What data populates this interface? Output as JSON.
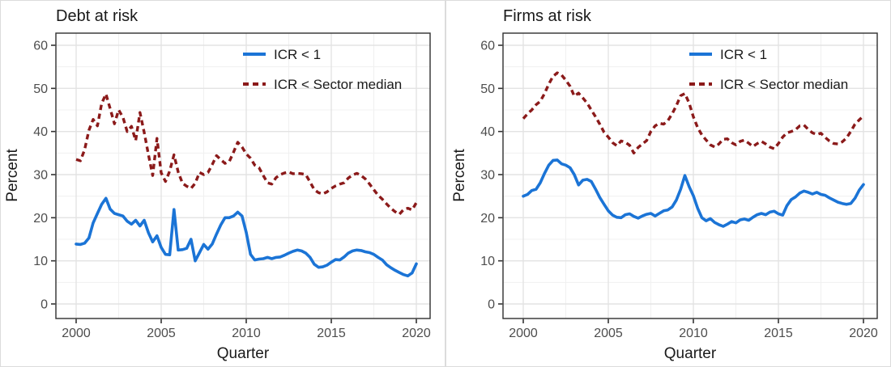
{
  "page": {
    "background": "#ffffff"
  },
  "colors": {
    "series_blue": "#1B74D6",
    "series_red": "#8B1A1A",
    "text": "#1A1A1A",
    "tick_label": "#4D4D4D",
    "grid_major": "#E3E3E3",
    "grid_minor": "#F0F0F0",
    "panel_border": "#2F2F2F",
    "tick_mark": "#333333"
  },
  "chart_data": [
    {
      "type": "line",
      "title": "Debt at risk",
      "xlabel": "Quarter",
      "ylabel": "Percent",
      "x_ticks": [
        2000,
        2005,
        2010,
        2015,
        2020
      ],
      "x_minor_ticks": [
        2002.5,
        2007.5,
        2012.5,
        2017.5
      ],
      "y_ticks": [
        0,
        10,
        20,
        30,
        40,
        50,
        60
      ],
      "y_minor_ticks": [
        5,
        15,
        25,
        35,
        45,
        55
      ],
      "ylim": [
        -3.5,
        62.8
      ],
      "x": {
        "start": 2000,
        "step": 0.25,
        "end": 2020,
        "unit": "quarter"
      },
      "legend_position": "top-right-inside",
      "grid": true,
      "series": [
        {
          "name": "ICR < 1",
          "style": "solid",
          "color_key": "series_blue",
          "values": [
            13.9,
            13.8,
            14.1,
            15.3,
            18.8,
            21.0,
            23.1,
            24.5,
            22.0,
            21.0,
            20.7,
            20.4,
            19.2,
            18.5,
            19.4,
            18.1,
            19.4,
            16.5,
            14.4,
            15.8,
            13.1,
            11.5,
            11.4,
            21.9,
            12.5,
            12.6,
            12.9,
            15.0,
            10.0,
            11.9,
            13.8,
            12.7,
            13.9,
            16.2,
            18.3,
            20.0,
            20.0,
            20.4,
            21.3,
            20.4,
            16.6,
            11.5,
            10.2,
            10.4,
            10.5,
            10.8,
            10.5,
            10.8,
            10.9,
            11.3,
            11.8,
            12.2,
            12.5,
            12.3,
            11.8,
            10.8,
            9.2,
            8.5,
            8.6,
            9.0,
            9.7,
            10.3,
            10.2,
            10.9,
            11.8,
            12.3,
            12.5,
            12.4,
            12.1,
            11.9,
            11.5,
            10.8,
            10.2,
            9.1,
            8.4,
            7.8,
            7.3,
            6.8,
            6.5,
            7.2,
            9.3
          ]
        },
        {
          "name": "ICR < Sector median",
          "style": "dashed",
          "color_key": "series_red",
          "values": [
            33.5,
            33.2,
            35.8,
            40.3,
            42.8,
            41.3,
            46.5,
            48.7,
            45.3,
            41.8,
            45.0,
            43.3,
            40.0,
            41.2,
            37.9,
            44.4,
            39.8,
            34.6,
            29.8,
            38.4,
            30.4,
            28.4,
            30.8,
            34.6,
            30.6,
            28.0,
            27.3,
            26.8,
            28.0,
            30.5,
            30.0,
            30.5,
            32.3,
            34.4,
            33.5,
            32.6,
            33.0,
            35.2,
            37.5,
            36.4,
            34.8,
            33.8,
            32.2,
            31.6,
            29.8,
            28.1,
            27.8,
            29.3,
            30.0,
            30.4,
            30.6,
            30.2,
            30.3,
            30.2,
            30.0,
            28.3,
            26.5,
            25.8,
            25.5,
            26.0,
            26.8,
            27.4,
            27.8,
            28.1,
            29.2,
            29.9,
            30.3,
            29.8,
            29.0,
            27.8,
            26.5,
            25.2,
            24.3,
            23.2,
            22.2,
            21.4,
            20.8,
            21.9,
            22.2,
            21.8,
            23.5
          ]
        }
      ]
    },
    {
      "type": "line",
      "title": "Firms at risk",
      "xlabel": "Quarter",
      "ylabel": "Percent",
      "x_ticks": [
        2000,
        2005,
        2010,
        2015,
        2020
      ],
      "x_minor_ticks": [
        2002.5,
        2007.5,
        2012.5,
        2017.5
      ],
      "y_ticks": [
        0,
        10,
        20,
        30,
        40,
        50,
        60
      ],
      "y_minor_ticks": [
        5,
        15,
        25,
        35,
        45,
        55
      ],
      "ylim": [
        -3.5,
        62.8
      ],
      "x": {
        "start": 2000,
        "step": 0.25,
        "end": 2020,
        "unit": "quarter"
      },
      "legend_position": "top-right-inside",
      "grid": true,
      "series": [
        {
          "name": "ICR < 1",
          "style": "solid",
          "color_key": "series_blue",
          "values": [
            25.0,
            25.4,
            26.3,
            26.6,
            28.1,
            30.3,
            32.2,
            33.3,
            33.4,
            32.5,
            32.2,
            31.6,
            30.0,
            27.6,
            28.7,
            28.9,
            28.4,
            26.6,
            24.7,
            23.1,
            21.6,
            20.6,
            20.1,
            20.0,
            20.7,
            20.9,
            20.3,
            19.9,
            20.4,
            20.8,
            21.0,
            20.4,
            21.0,
            21.6,
            21.8,
            22.5,
            24.1,
            26.6,
            29.8,
            27.2,
            25.1,
            22.2,
            20.0,
            19.3,
            19.8,
            18.9,
            18.4,
            18.0,
            18.5,
            19.1,
            18.8,
            19.5,
            19.7,
            19.4,
            20.1,
            20.7,
            21.0,
            20.7,
            21.3,
            21.5,
            20.9,
            20.6,
            22.8,
            24.2,
            24.8,
            25.7,
            26.2,
            25.9,
            25.5,
            25.9,
            25.4,
            25.2,
            24.6,
            24.1,
            23.6,
            23.3,
            23.1,
            23.3,
            24.5,
            26.4,
            27.7
          ]
        },
        {
          "name": "ICR < Sector median",
          "style": "dashed",
          "color_key": "series_red",
          "values": [
            43.0,
            44.1,
            45.0,
            46.2,
            47.0,
            48.8,
            51.0,
            52.8,
            53.6,
            53.1,
            51.9,
            50.5,
            48.2,
            48.9,
            47.8,
            46.6,
            45.0,
            43.4,
            41.7,
            39.8,
            38.7,
            37.4,
            36.7,
            37.8,
            37.5,
            36.8,
            35.0,
            36.3,
            37.1,
            37.9,
            40.0,
            41.3,
            41.9,
            41.7,
            42.5,
            44.1,
            46.0,
            48.3,
            48.8,
            46.6,
            43.4,
            40.9,
            39.2,
            38.0,
            36.9,
            36.4,
            37.1,
            38.2,
            38.3,
            37.4,
            36.9,
            37.7,
            38.0,
            37.3,
            36.5,
            37.2,
            37.7,
            37.1,
            36.4,
            36.0,
            37.2,
            38.7,
            39.7,
            40.0,
            40.4,
            41.3,
            41.5,
            40.5,
            39.7,
            39.3,
            39.6,
            38.6,
            37.8,
            37.2,
            37.1,
            37.6,
            38.5,
            40.0,
            41.7,
            42.7,
            43.6
          ]
        }
      ]
    }
  ]
}
